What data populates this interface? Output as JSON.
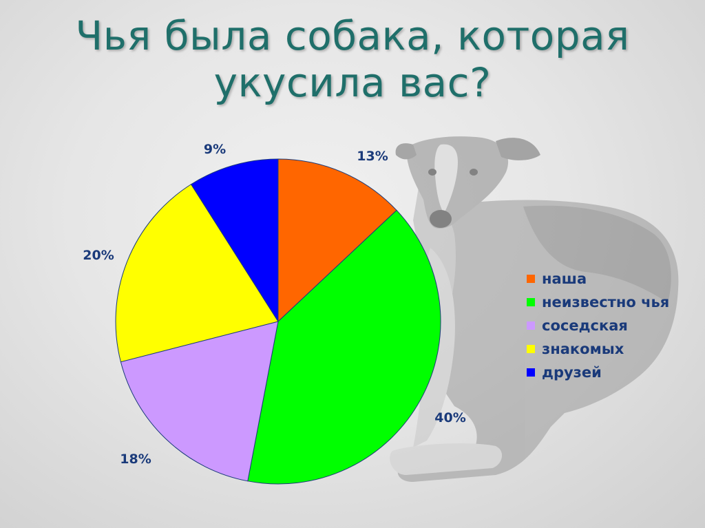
{
  "slide": {
    "title": "Чья была собака, которая укусила вас?"
  },
  "chart_data": {
    "type": "pie",
    "title": "",
    "categories": [
      "наша",
      "неизвестно чья",
      "соседская",
      "знакомых",
      "друзей"
    ],
    "values": [
      13,
      40,
      18,
      20,
      9
    ],
    "labels": [
      "13%",
      "40%",
      "18%",
      "20%",
      "9%"
    ],
    "colors": [
      "#ff6600",
      "#00ff00",
      "#cc99ff",
      "#ffff00",
      "#0000ff"
    ],
    "start_angle_deg": 0,
    "direction": "clockwise",
    "legend_position": "right",
    "value_unit": "%"
  },
  "background": {
    "image": "dog-photo",
    "tint": "grayscale"
  }
}
